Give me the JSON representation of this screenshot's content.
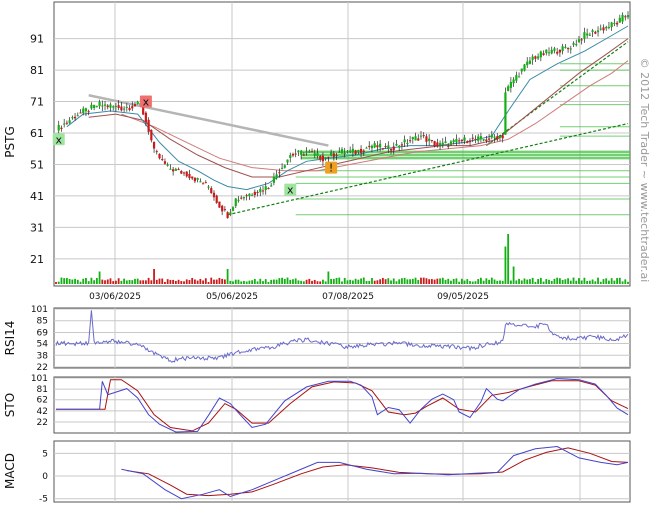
{
  "ticker": "PSTG",
  "watermark": "© 2012 Tech Trader ~ www.techtrader.ai",
  "panels": {
    "rsi_label": "RSI14",
    "sto_label": "STO",
    "macd_label": "MACD"
  },
  "colors": {
    "up": "#12b012",
    "down": "#cc1a1a",
    "grid": "#c8c8c8",
    "indicator": "#4444cc",
    "signal": "#aa1111",
    "trend": "#108010",
    "fib": "#4fc44f",
    "resistance": "#b5b5b5"
  },
  "chart_data": [
    {
      "type": "candlestick",
      "series": "PSTG",
      "yticks": [
        21,
        31,
        41,
        51,
        61,
        71,
        81,
        91
      ],
      "ylim": [
        13,
        102
      ],
      "x_tick_labels": [
        "03/06/2025",
        "05/06/2025",
        "07/08/2025",
        "09/05/2025"
      ],
      "price_path": [
        [
          0,
          62
        ],
        [
          8,
          67
        ],
        [
          16,
          70
        ],
        [
          24,
          69
        ],
        [
          31,
          70
        ],
        [
          34,
          62
        ],
        [
          36,
          55
        ],
        [
          41,
          50
        ],
        [
          48,
          48
        ],
        [
          56,
          44
        ],
        [
          60,
          38
        ],
        [
          63,
          35
        ],
        [
          66,
          40
        ],
        [
          72,
          42
        ],
        [
          78,
          44
        ],
        [
          81,
          48
        ],
        [
          86,
          54
        ],
        [
          92,
          55
        ],
        [
          98,
          53
        ],
        [
          104,
          55
        ],
        [
          110,
          55
        ],
        [
          116,
          57
        ],
        [
          122,
          56
        ],
        [
          128,
          58
        ],
        [
          134,
          60
        ],
        [
          140,
          57
        ],
        [
          146,
          58
        ],
        [
          152,
          59
        ],
        [
          158,
          59
        ],
        [
          162,
          60
        ],
        [
          164,
          60
        ],
        [
          165,
          74
        ],
        [
          168,
          78
        ],
        [
          175,
          85
        ],
        [
          182,
          87
        ],
        [
          188,
          88
        ],
        [
          194,
          92
        ],
        [
          200,
          94
        ],
        [
          206,
          96
        ],
        [
          210,
          99
        ]
      ],
      "sma_short": [
        [
          4,
          63
        ],
        [
          10,
          67
        ],
        [
          20,
          68
        ],
        [
          30,
          67
        ],
        [
          38,
          58
        ],
        [
          45,
          52
        ],
        [
          52,
          49
        ],
        [
          58,
          46
        ],
        [
          63,
          44
        ],
        [
          70,
          43
        ],
        [
          78,
          45
        ],
        [
          85,
          49
        ],
        [
          92,
          52
        ],
        [
          100,
          53
        ],
        [
          110,
          54
        ],
        [
          120,
          56
        ],
        [
          130,
          57
        ],
        [
          140,
          57
        ],
        [
          150,
          58
        ],
        [
          160,
          60
        ],
        [
          166,
          68
        ],
        [
          174,
          78
        ],
        [
          184,
          83
        ],
        [
          194,
          87
        ],
        [
          204,
          92
        ],
        [
          210,
          95
        ]
      ],
      "sma_mid": [
        [
          12,
          66
        ],
        [
          22,
          67
        ],
        [
          32,
          65
        ],
        [
          42,
          59
        ],
        [
          52,
          54
        ],
        [
          62,
          50
        ],
        [
          72,
          47
        ],
        [
          82,
          47
        ],
        [
          92,
          49
        ],
        [
          102,
          51
        ],
        [
          112,
          53
        ],
        [
          122,
          55
        ],
        [
          132,
          56
        ],
        [
          142,
          57
        ],
        [
          152,
          57
        ],
        [
          162,
          59
        ],
        [
          172,
          66
        ],
        [
          182,
          73
        ],
        [
          192,
          80
        ],
        [
          202,
          86
        ],
        [
          210,
          91
        ]
      ],
      "sma_long": [
        [
          24,
          67
        ],
        [
          36,
          63
        ],
        [
          48,
          58
        ],
        [
          60,
          53
        ],
        [
          72,
          50
        ],
        [
          84,
          49
        ],
        [
          96,
          49
        ],
        [
          108,
          51
        ],
        [
          120,
          53
        ],
        [
          132,
          55
        ],
        [
          144,
          56
        ],
        [
          156,
          57
        ],
        [
          166,
          59
        ],
        [
          176,
          64
        ],
        [
          186,
          70
        ],
        [
          196,
          76
        ],
        [
          204,
          80
        ],
        [
          210,
          84
        ]
      ],
      "trendline_support": [
        [
          63,
          35
        ],
        [
          210,
          64
        ]
      ],
      "trendline_upper": [
        [
          158,
          57
        ],
        [
          210,
          90
        ]
      ],
      "trendline_resistance": [
        [
          12,
          73
        ],
        [
          100,
          57
        ]
      ],
      "fib_levels": [
        35,
        40,
        45,
        47,
        49,
        53,
        54,
        55,
        60,
        63,
        70,
        76,
        81,
        83
      ],
      "markers": [
        {
          "x": 1,
          "y": 59,
          "label": "x",
          "kind": "buy"
        },
        {
          "x": 33,
          "y": 71,
          "label": "x",
          "kind": "sell"
        },
        {
          "x": 86,
          "y": 43,
          "label": "x",
          "kind": "buy"
        },
        {
          "x": 101,
          "y": 50,
          "label": "!",
          "kind": "alert"
        }
      ],
      "volume_spikes": [
        [
          16,
          0.25
        ],
        [
          36,
          0.3
        ],
        [
          63,
          0.3
        ],
        [
          100,
          0.25
        ],
        [
          165,
          0.75
        ],
        [
          166,
          1.0
        ],
        [
          168,
          0.35
        ]
      ]
    },
    {
      "type": "line",
      "series": "RSI14",
      "yticks": [
        22,
        38,
        54,
        69,
        85,
        101
      ],
      "ylim": [
        22,
        101
      ],
      "path": [
        [
          0,
          54
        ],
        [
          12,
          54
        ],
        [
          13,
          101
        ],
        [
          14,
          55
        ],
        [
          20,
          57
        ],
        [
          30,
          53
        ],
        [
          36,
          40
        ],
        [
          42,
          31
        ],
        [
          50,
          35
        ],
        [
          60,
          34
        ],
        [
          66,
          42
        ],
        [
          72,
          46
        ],
        [
          80,
          50
        ],
        [
          86,
          56
        ],
        [
          92,
          59
        ],
        [
          98,
          55
        ],
        [
          106,
          50
        ],
        [
          114,
          52
        ],
        [
          124,
          54
        ],
        [
          134,
          52
        ],
        [
          144,
          50
        ],
        [
          152,
          47
        ],
        [
          158,
          53
        ],
        [
          164,
          56
        ],
        [
          165,
          79
        ],
        [
          168,
          81
        ],
        [
          176,
          78
        ],
        [
          180,
          79
        ],
        [
          183,
          64
        ],
        [
          190,
          60
        ],
        [
          198,
          63
        ],
        [
          202,
          61
        ],
        [
          206,
          59
        ],
        [
          210,
          65
        ]
      ]
    },
    {
      "type": "line",
      "series": "STO",
      "yticks": [
        22,
        42,
        62,
        81,
        101
      ],
      "ylim": [
        4,
        101
      ],
      "k": [
        [
          0,
          45
        ],
        [
          16,
          45
        ],
        [
          17,
          95
        ],
        [
          19,
          71
        ],
        [
          26,
          82
        ],
        [
          30,
          65
        ],
        [
          34,
          35
        ],
        [
          38,
          18
        ],
        [
          44,
          4
        ],
        [
          52,
          5
        ],
        [
          56,
          34
        ],
        [
          60,
          65
        ],
        [
          64,
          55
        ],
        [
          68,
          33
        ],
        [
          72,
          12
        ],
        [
          77,
          18
        ],
        [
          84,
          60
        ],
        [
          92,
          85
        ],
        [
          100,
          95
        ],
        [
          108,
          95
        ],
        [
          112,
          88
        ],
        [
          116,
          67
        ],
        [
          118,
          35
        ],
        [
          122,
          48
        ],
        [
          126,
          44
        ],
        [
          130,
          20
        ],
        [
          134,
          45
        ],
        [
          138,
          63
        ],
        [
          142,
          72
        ],
        [
          146,
          62
        ],
        [
          148,
          40
        ],
        [
          152,
          30
        ],
        [
          156,
          58
        ],
        [
          158,
          82
        ],
        [
          162,
          63
        ],
        [
          164,
          60
        ],
        [
          170,
          80
        ],
        [
          176,
          90
        ],
        [
          184,
          100
        ],
        [
          192,
          98
        ],
        [
          198,
          90
        ],
        [
          202,
          70
        ],
        [
          206,
          47
        ],
        [
          210,
          35
        ]
      ],
      "d": [
        [
          0,
          45
        ],
        [
          18,
          45
        ],
        [
          20,
          98
        ],
        [
          24,
          98
        ],
        [
          30,
          78
        ],
        [
          36,
          35
        ],
        [
          42,
          12
        ],
        [
          50,
          6
        ],
        [
          56,
          20
        ],
        [
          62,
          55
        ],
        [
          66,
          45
        ],
        [
          72,
          20
        ],
        [
          78,
          20
        ],
        [
          86,
          55
        ],
        [
          94,
          85
        ],
        [
          102,
          94
        ],
        [
          110,
          92
        ],
        [
          116,
          78
        ],
        [
          122,
          40
        ],
        [
          128,
          35
        ],
        [
          132,
          38
        ],
        [
          136,
          50
        ],
        [
          142,
          65
        ],
        [
          148,
          45
        ],
        [
          154,
          40
        ],
        [
          160,
          70
        ],
        [
          166,
          75
        ],
        [
          174,
          86
        ],
        [
          182,
          96
        ],
        [
          192,
          96
        ],
        [
          198,
          88
        ],
        [
          204,
          60
        ],
        [
          210,
          46
        ]
      ]
    },
    {
      "type": "line",
      "series": "MACD",
      "yticks": [
        -5,
        0,
        5
      ],
      "ylim": [
        -5.5,
        7.5
      ],
      "macd": [
        [
          24,
          1.5
        ],
        [
          32,
          0.5
        ],
        [
          40,
          -3
        ],
        [
          46,
          -5
        ],
        [
          54,
          -4
        ],
        [
          60,
          -3
        ],
        [
          64,
          -4.5
        ],
        [
          72,
          -3
        ],
        [
          80,
          -1
        ],
        [
          88,
          1
        ],
        [
          96,
          3
        ],
        [
          104,
          3
        ],
        [
          114,
          1.5
        ],
        [
          124,
          0.5
        ],
        [
          134,
          0.6
        ],
        [
          144,
          0.3
        ],
        [
          154,
          0.6
        ],
        [
          162,
          0.8
        ],
        [
          168,
          4.5
        ],
        [
          176,
          6
        ],
        [
          184,
          6.5
        ],
        [
          192,
          4
        ],
        [
          200,
          3
        ],
        [
          206,
          2.5
        ],
        [
          210,
          3
        ]
      ],
      "signal": [
        [
          26,
          1.2
        ],
        [
          34,
          0.5
        ],
        [
          42,
          -2
        ],
        [
          48,
          -4
        ],
        [
          56,
          -4.3
        ],
        [
          64,
          -4
        ],
        [
          72,
          -3.5
        ],
        [
          80,
          -1.8
        ],
        [
          90,
          0.5
        ],
        [
          98,
          2
        ],
        [
          106,
          2.5
        ],
        [
          116,
          1.8
        ],
        [
          126,
          0.8
        ],
        [
          136,
          0.5
        ],
        [
          146,
          0.4
        ],
        [
          156,
          0.5
        ],
        [
          164,
          0.9
        ],
        [
          172,
          3.5
        ],
        [
          180,
          5.2
        ],
        [
          188,
          6.2
        ],
        [
          196,
          5
        ],
        [
          204,
          3.2
        ],
        [
          210,
          3
        ]
      ]
    }
  ]
}
